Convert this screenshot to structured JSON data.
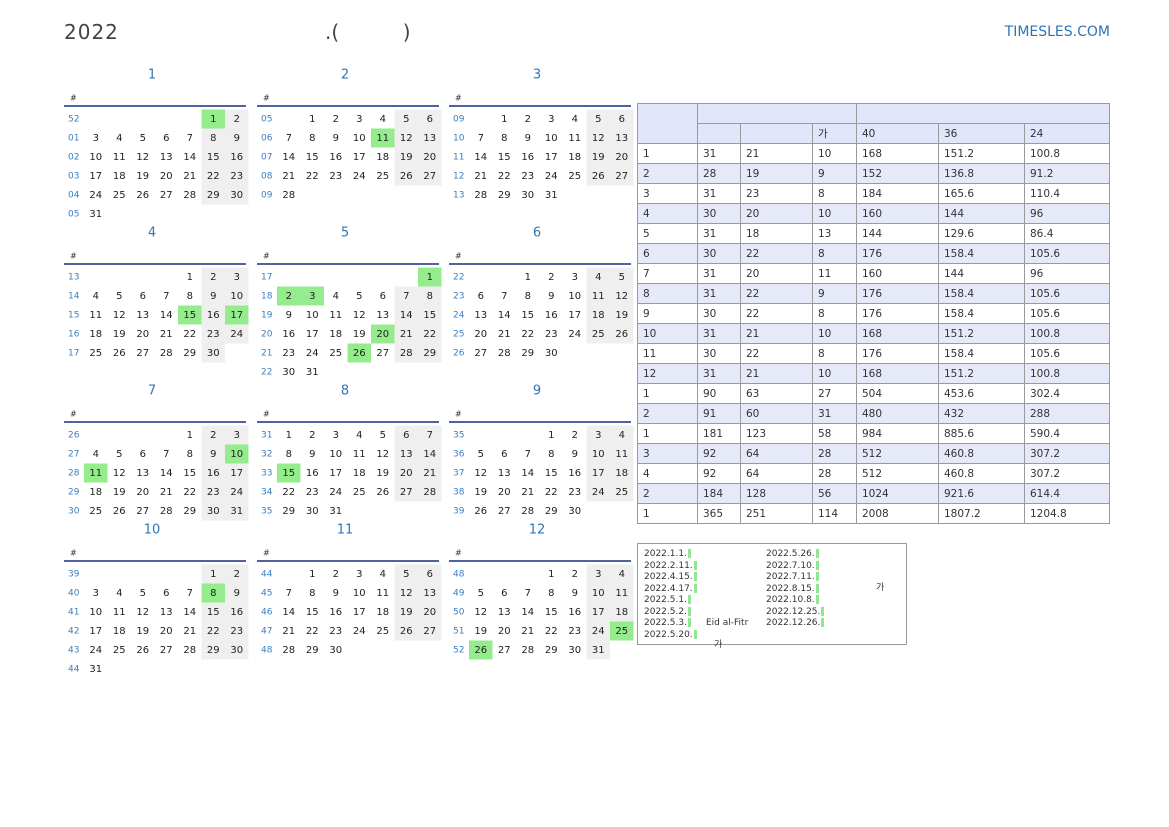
{
  "header": {
    "title": "2022",
    "subtitle": ".(          )",
    "brand": "TIMESLES.COM"
  },
  "calendars": {
    "week_label": "#",
    "months": [
      {
        "name": "1",
        "holidays": [
          1
        ],
        "weeks": [
          {
            "no": "52",
            "days": [
              null,
              null,
              null,
              null,
              null,
              1,
              2
            ]
          },
          {
            "no": "01",
            "days": [
              3,
              4,
              5,
              6,
              7,
              8,
              9
            ]
          },
          {
            "no": "02",
            "days": [
              10,
              11,
              12,
              13,
              14,
              15,
              16
            ]
          },
          {
            "no": "03",
            "days": [
              17,
              18,
              19,
              20,
              21,
              22,
              23
            ]
          },
          {
            "no": "04",
            "days": [
              24,
              25,
              26,
              27,
              28,
              29,
              30
            ]
          },
          {
            "no": "05",
            "days": [
              31
            ]
          }
        ]
      },
      {
        "name": "2",
        "holidays": [
          11
        ],
        "weeks": [
          {
            "no": "05",
            "days": [
              null,
              1,
              2,
              3,
              4,
              5,
              6
            ]
          },
          {
            "no": "06",
            "days": [
              7,
              8,
              9,
              10,
              11,
              12,
              13
            ]
          },
          {
            "no": "07",
            "days": [
              14,
              15,
              16,
              17,
              18,
              19,
              20
            ]
          },
          {
            "no": "08",
            "days": [
              21,
              22,
              23,
              24,
              25,
              26,
              27
            ]
          },
          {
            "no": "09",
            "days": [
              28
            ]
          }
        ]
      },
      {
        "name": "3",
        "holidays": [],
        "weeks": [
          {
            "no": "09",
            "days": [
              null,
              1,
              2,
              3,
              4,
              5,
              6
            ]
          },
          {
            "no": "10",
            "days": [
              7,
              8,
              9,
              10,
              11,
              12,
              13
            ]
          },
          {
            "no": "11",
            "days": [
              14,
              15,
              16,
              17,
              18,
              19,
              20
            ]
          },
          {
            "no": "12",
            "days": [
              21,
              22,
              23,
              24,
              25,
              26,
              27
            ]
          },
          {
            "no": "13",
            "days": [
              28,
              29,
              30,
              31
            ]
          }
        ]
      },
      {
        "name": "4",
        "holidays": [
          15,
          17
        ],
        "weeks": [
          {
            "no": "13",
            "days": [
              null,
              null,
              null,
              null,
              1,
              2,
              3
            ]
          },
          {
            "no": "14",
            "days": [
              4,
              5,
              6,
              7,
              8,
              9,
              10
            ]
          },
          {
            "no": "15",
            "days": [
              11,
              12,
              13,
              14,
              15,
              16,
              17
            ]
          },
          {
            "no": "16",
            "days": [
              18,
              19,
              20,
              21,
              22,
              23,
              24
            ]
          },
          {
            "no": "17",
            "days": [
              25,
              26,
              27,
              28,
              29,
              30
            ]
          }
        ]
      },
      {
        "name": "5",
        "holidays": [
          1,
          2,
          3,
          20,
          26
        ],
        "weeks": [
          {
            "no": "17",
            "days": [
              null,
              null,
              null,
              null,
              null,
              null,
              1
            ]
          },
          {
            "no": "18",
            "days": [
              2,
              3,
              4,
              5,
              6,
              7,
              8
            ]
          },
          {
            "no": "19",
            "days": [
              9,
              10,
              11,
              12,
              13,
              14,
              15
            ]
          },
          {
            "no": "20",
            "days": [
              16,
              17,
              18,
              19,
              20,
              21,
              22
            ]
          },
          {
            "no": "21",
            "days": [
              23,
              24,
              25,
              26,
              27,
              28,
              29
            ]
          },
          {
            "no": "22",
            "days": [
              30,
              31
            ]
          }
        ]
      },
      {
        "name": "6",
        "holidays": [],
        "weeks": [
          {
            "no": "22",
            "days": [
              null,
              null,
              1,
              2,
              3,
              4,
              5
            ]
          },
          {
            "no": "23",
            "days": [
              6,
              7,
              8,
              9,
              10,
              11,
              12
            ]
          },
          {
            "no": "24",
            "days": [
              13,
              14,
              15,
              16,
              17,
              18,
              19
            ]
          },
          {
            "no": "25",
            "days": [
              20,
              21,
              22,
              23,
              24,
              25,
              26
            ]
          },
          {
            "no": "26",
            "days": [
              27,
              28,
              29,
              30
            ]
          }
        ]
      },
      {
        "name": "7",
        "holidays": [
          10,
          11
        ],
        "weeks": [
          {
            "no": "26",
            "days": [
              null,
              null,
              null,
              null,
              1,
              2,
              3
            ]
          },
          {
            "no": "27",
            "days": [
              4,
              5,
              6,
              7,
              8,
              9,
              10
            ]
          },
          {
            "no": "28",
            "days": [
              11,
              12,
              13,
              14,
              15,
              16,
              17
            ]
          },
          {
            "no": "29",
            "days": [
              18,
              19,
              20,
              21,
              22,
              23,
              24
            ]
          },
          {
            "no": "30",
            "days": [
              25,
              26,
              27,
              28,
              29,
              30,
              31
            ]
          }
        ]
      },
      {
        "name": "8",
        "holidays": [
          15
        ],
        "weeks": [
          {
            "no": "31",
            "days": [
              1,
              2,
              3,
              4,
              5,
              6,
              7
            ]
          },
          {
            "no": "32",
            "days": [
              8,
              9,
              10,
              11,
              12,
              13,
              14
            ]
          },
          {
            "no": "33",
            "days": [
              15,
              16,
              17,
              18,
              19,
              20,
              21
            ]
          },
          {
            "no": "34",
            "days": [
              22,
              23,
              24,
              25,
              26,
              27,
              28
            ]
          },
          {
            "no": "35",
            "days": [
              29,
              30,
              31
            ]
          }
        ]
      },
      {
        "name": "9",
        "holidays": [],
        "weeks": [
          {
            "no": "35",
            "days": [
              null,
              null,
              null,
              1,
              2,
              3,
              4
            ]
          },
          {
            "no": "36",
            "days": [
              5,
              6,
              7,
              8,
              9,
              10,
              11
            ]
          },
          {
            "no": "37",
            "days": [
              12,
              13,
              14,
              15,
              16,
              17,
              18
            ]
          },
          {
            "no": "38",
            "days": [
              19,
              20,
              21,
              22,
              23,
              24,
              25
            ]
          },
          {
            "no": "39",
            "days": [
              26,
              27,
              28,
              29,
              30
            ]
          }
        ]
      },
      {
        "name": "10",
        "holidays": [
          8
        ],
        "weeks": [
          {
            "no": "39",
            "days": [
              null,
              null,
              null,
              null,
              null,
              1,
              2
            ]
          },
          {
            "no": "40",
            "days": [
              3,
              4,
              5,
              6,
              7,
              8,
              9
            ]
          },
          {
            "no": "41",
            "days": [
              10,
              11,
              12,
              13,
              14,
              15,
              16
            ]
          },
          {
            "no": "42",
            "days": [
              17,
              18,
              19,
              20,
              21,
              22,
              23
            ]
          },
          {
            "no": "43",
            "days": [
              24,
              25,
              26,
              27,
              28,
              29,
              30
            ]
          },
          {
            "no": "44",
            "days": [
              31
            ]
          }
        ]
      },
      {
        "name": "11",
        "holidays": [],
        "weeks": [
          {
            "no": "44",
            "days": [
              null,
              1,
              2,
              3,
              4,
              5,
              6
            ]
          },
          {
            "no": "45",
            "days": [
              7,
              8,
              9,
              10,
              11,
              12,
              13
            ]
          },
          {
            "no": "46",
            "days": [
              14,
              15,
              16,
              17,
              18,
              19,
              20
            ]
          },
          {
            "no": "47",
            "days": [
              21,
              22,
              23,
              24,
              25,
              26,
              27
            ]
          },
          {
            "no": "48",
            "days": [
              28,
              29,
              30
            ]
          }
        ]
      },
      {
        "name": "12",
        "holidays": [
          25,
          26
        ],
        "weeks": [
          {
            "no": "48",
            "days": [
              null,
              null,
              null,
              1,
              2,
              3,
              4
            ]
          },
          {
            "no": "49",
            "days": [
              5,
              6,
              7,
              8,
              9,
              10,
              11
            ]
          },
          {
            "no": "50",
            "days": [
              12,
              13,
              14,
              15,
              16,
              17,
              18
            ]
          },
          {
            "no": "51",
            "days": [
              19,
              20,
              21,
              22,
              23,
              24,
              25
            ]
          },
          {
            "no": "52",
            "days": [
              26,
              27,
              28,
              29,
              30,
              31
            ]
          }
        ]
      }
    ]
  },
  "table": {
    "header": [
      "가",
      "40",
      "36",
      "24"
    ],
    "rows": [
      [
        "1",
        31,
        21,
        10,
        168,
        151.2,
        100.8
      ],
      [
        "2",
        28,
        19,
        9,
        152,
        136.8,
        91.2
      ],
      [
        "3",
        31,
        23,
        8,
        184,
        165.6,
        110.4
      ],
      [
        "4",
        30,
        20,
        10,
        160,
        144,
        96
      ],
      [
        "5",
        31,
        18,
        13,
        144,
        129.6,
        86.4
      ],
      [
        "6",
        30,
        22,
        8,
        176,
        158.4,
        105.6
      ],
      [
        "7",
        31,
        20,
        11,
        160,
        144,
        96
      ],
      [
        "8",
        31,
        22,
        9,
        176,
        158.4,
        105.6
      ],
      [
        "9",
        30,
        22,
        8,
        176,
        158.4,
        105.6
      ],
      [
        "10",
        31,
        21,
        10,
        168,
        151.2,
        100.8
      ],
      [
        "11",
        30,
        22,
        8,
        176,
        158.4,
        105.6
      ],
      [
        "12",
        31,
        21,
        10,
        168,
        151.2,
        100.8
      ],
      [
        "1",
        90,
        63,
        27,
        504,
        453.6,
        302.4
      ],
      [
        "2",
        91,
        60,
        31,
        480,
        432,
        288
      ],
      [
        "1",
        181,
        123,
        58,
        984,
        885.6,
        590.4
      ],
      [
        "3",
        92,
        64,
        28,
        512,
        460.8,
        307.2
      ],
      [
        "4",
        92,
        64,
        28,
        512,
        460.8,
        307.2
      ],
      [
        "2",
        184,
        128,
        56,
        1024,
        921.6,
        614.4
      ],
      [
        "1",
        365,
        251,
        114,
        2008,
        1807.2,
        1204.8
      ]
    ]
  },
  "holiday_box": {
    "items": [
      {
        "date": "2022.1.1."
      },
      {
        "date": "2022.2.11."
      },
      {
        "date": "2022.4.15."
      },
      {
        "date": "2022.4.17."
      },
      {
        "date": "2022.5.1."
      },
      {
        "date": "2022.5.2."
      },
      {
        "date": "2022.5.3.",
        "name": "Eid al-Fitr"
      },
      {
        "date": "2022.5.20.",
        "name": "가"
      },
      {
        "date": "2022.5.26."
      },
      {
        "date": "2022.7.10."
      },
      {
        "date": "2022.7.11."
      },
      {
        "date": "2022.8.15."
      },
      {
        "date": "2022.10.8."
      },
      {
        "date": "2022.12.25."
      },
      {
        "date": "2022.12.26."
      }
    ],
    "side_note": "가"
  }
}
